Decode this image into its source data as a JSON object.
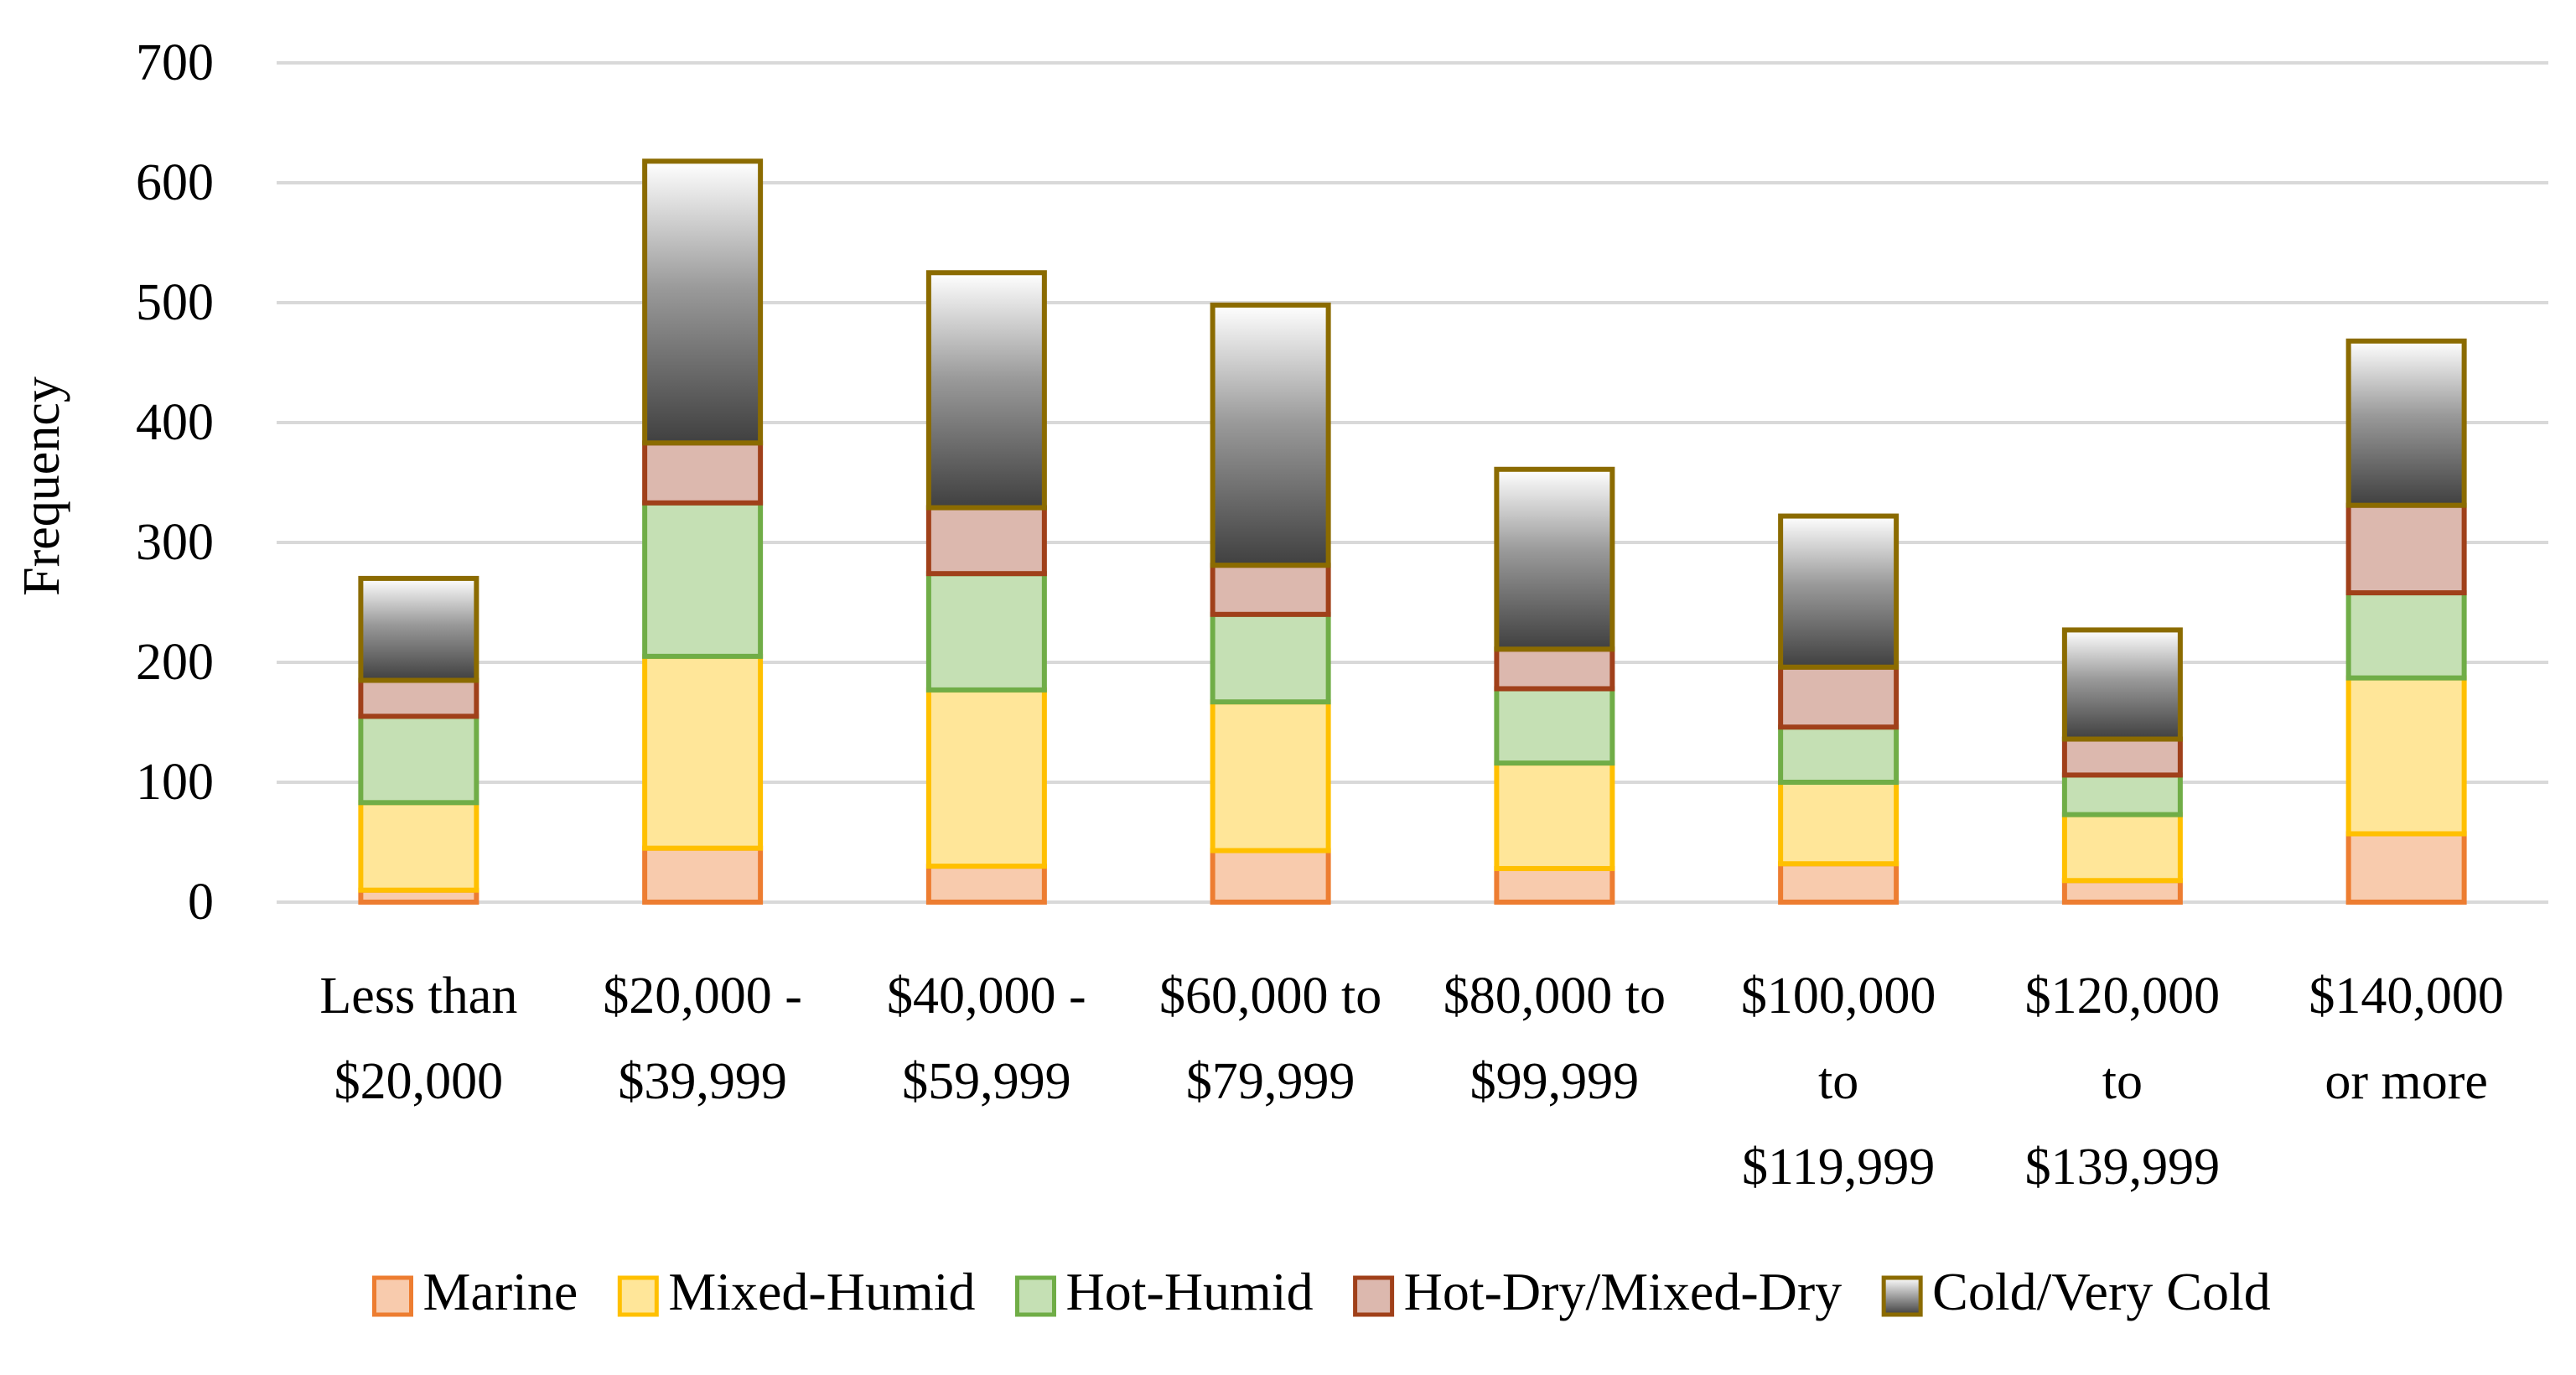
{
  "chart_data": {
    "type": "bar",
    "stacked": true,
    "title": "",
    "xlabel": "",
    "ylabel": "Frequency",
    "ylim": [
      0,
      700
    ],
    "yticks": [
      0,
      100,
      200,
      300,
      400,
      500,
      600,
      700
    ],
    "grid": true,
    "legend_position": "bottom",
    "categories": [
      [
        "Less than",
        "$20,000"
      ],
      [
        "$20,000 -",
        "$39,999"
      ],
      [
        "$40,000 -",
        "$59,999"
      ],
      [
        "$60,000 to",
        "$79,999"
      ],
      [
        "$80,000 to",
        "$99,999"
      ],
      [
        "$100,000",
        "to",
        "$119,999"
      ],
      [
        "$120,000",
        "to",
        "$139,999"
      ],
      [
        "$140,000",
        "or more"
      ]
    ],
    "series": [
      {
        "name": "Marine",
        "values": [
          10,
          45,
          30,
          43,
          28,
          32,
          18,
          57
        ],
        "fill": "#f4b183",
        "fill_light": "#f8cbad",
        "stroke": "#ed7d31"
      },
      {
        "name": "Mixed-Humid",
        "values": [
          73,
          160,
          147,
          124,
          88,
          68,
          55,
          130
        ],
        "fill": "#ffd966",
        "fill_light": "#ffe699",
        "stroke": "#ffc000"
      },
      {
        "name": "Hot-Humid",
        "values": [
          72,
          128,
          97,
          73,
          62,
          46,
          33,
          71
        ],
        "fill": "#a9d18e",
        "fill_light": "#c5e0b4",
        "stroke": "#70ad47"
      },
      {
        "name": "Hot-Dry/Mixed-Dry",
        "values": [
          30,
          50,
          55,
          41,
          33,
          50,
          30,
          73
        ],
        "fill": "#c9968a",
        "fill_light": "#dcb8ae",
        "stroke": "#a0401a"
      },
      {
        "name": "Cold/Very Cold",
        "values": [
          85,
          235,
          196,
          217,
          150,
          126,
          91,
          137
        ],
        "fill": "gradient",
        "stroke": "#8b6b00"
      }
    ]
  }
}
